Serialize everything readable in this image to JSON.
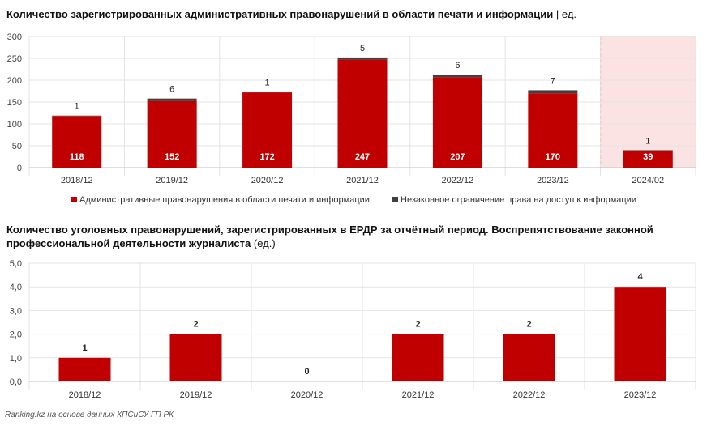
{
  "chart_data": [
    {
      "type": "bar",
      "stacked": true,
      "title": "Количество зарегистрированных административных правонарушений в области печати и информации",
      "unit": "| ед.",
      "categories": [
        "2018/12",
        "2019/12",
        "2020/12",
        "2021/12",
        "2022/12",
        "2023/12",
        "2024/02"
      ],
      "series": [
        {
          "name": "Административные правонарушения в области печати и информации",
          "color": "#c00000",
          "values": [
            118,
            152,
            172,
            247,
            207,
            170,
            39
          ]
        },
        {
          "name": "Незаконное ограничение права на доступ к информации",
          "color": "#404040",
          "values": [
            1,
            6,
            1,
            5,
            6,
            7,
            1
          ]
        }
      ],
      "yticks": [
        "0",
        "50",
        "100",
        "150",
        "200",
        "250",
        "300"
      ],
      "ylim": [
        0,
        300
      ],
      "grid": true,
      "legend": "bottom",
      "highlight_category": "2024/02"
    },
    {
      "type": "bar",
      "title": "Количество уголовных правонарушений, зарегистрированных в ЕРДР за отчётный период. Воспрепятствование законной профессиональной деятельности журналиста",
      "unit": "(ед.)",
      "categories": [
        "2018/12",
        "2019/12",
        "2020/12",
        "2021/12",
        "2022/12",
        "2023/12"
      ],
      "values": [
        1,
        2,
        0,
        2,
        2,
        4
      ],
      "color": "#c00000",
      "yticks": [
        "0,0",
        "1,0",
        "2,0",
        "3,0",
        "4,0",
        "5,0"
      ],
      "ylim": [
        0,
        5
      ],
      "grid": true
    }
  ],
  "source": "Ranking.kz на основе данных КПСиСУ ГП РК"
}
